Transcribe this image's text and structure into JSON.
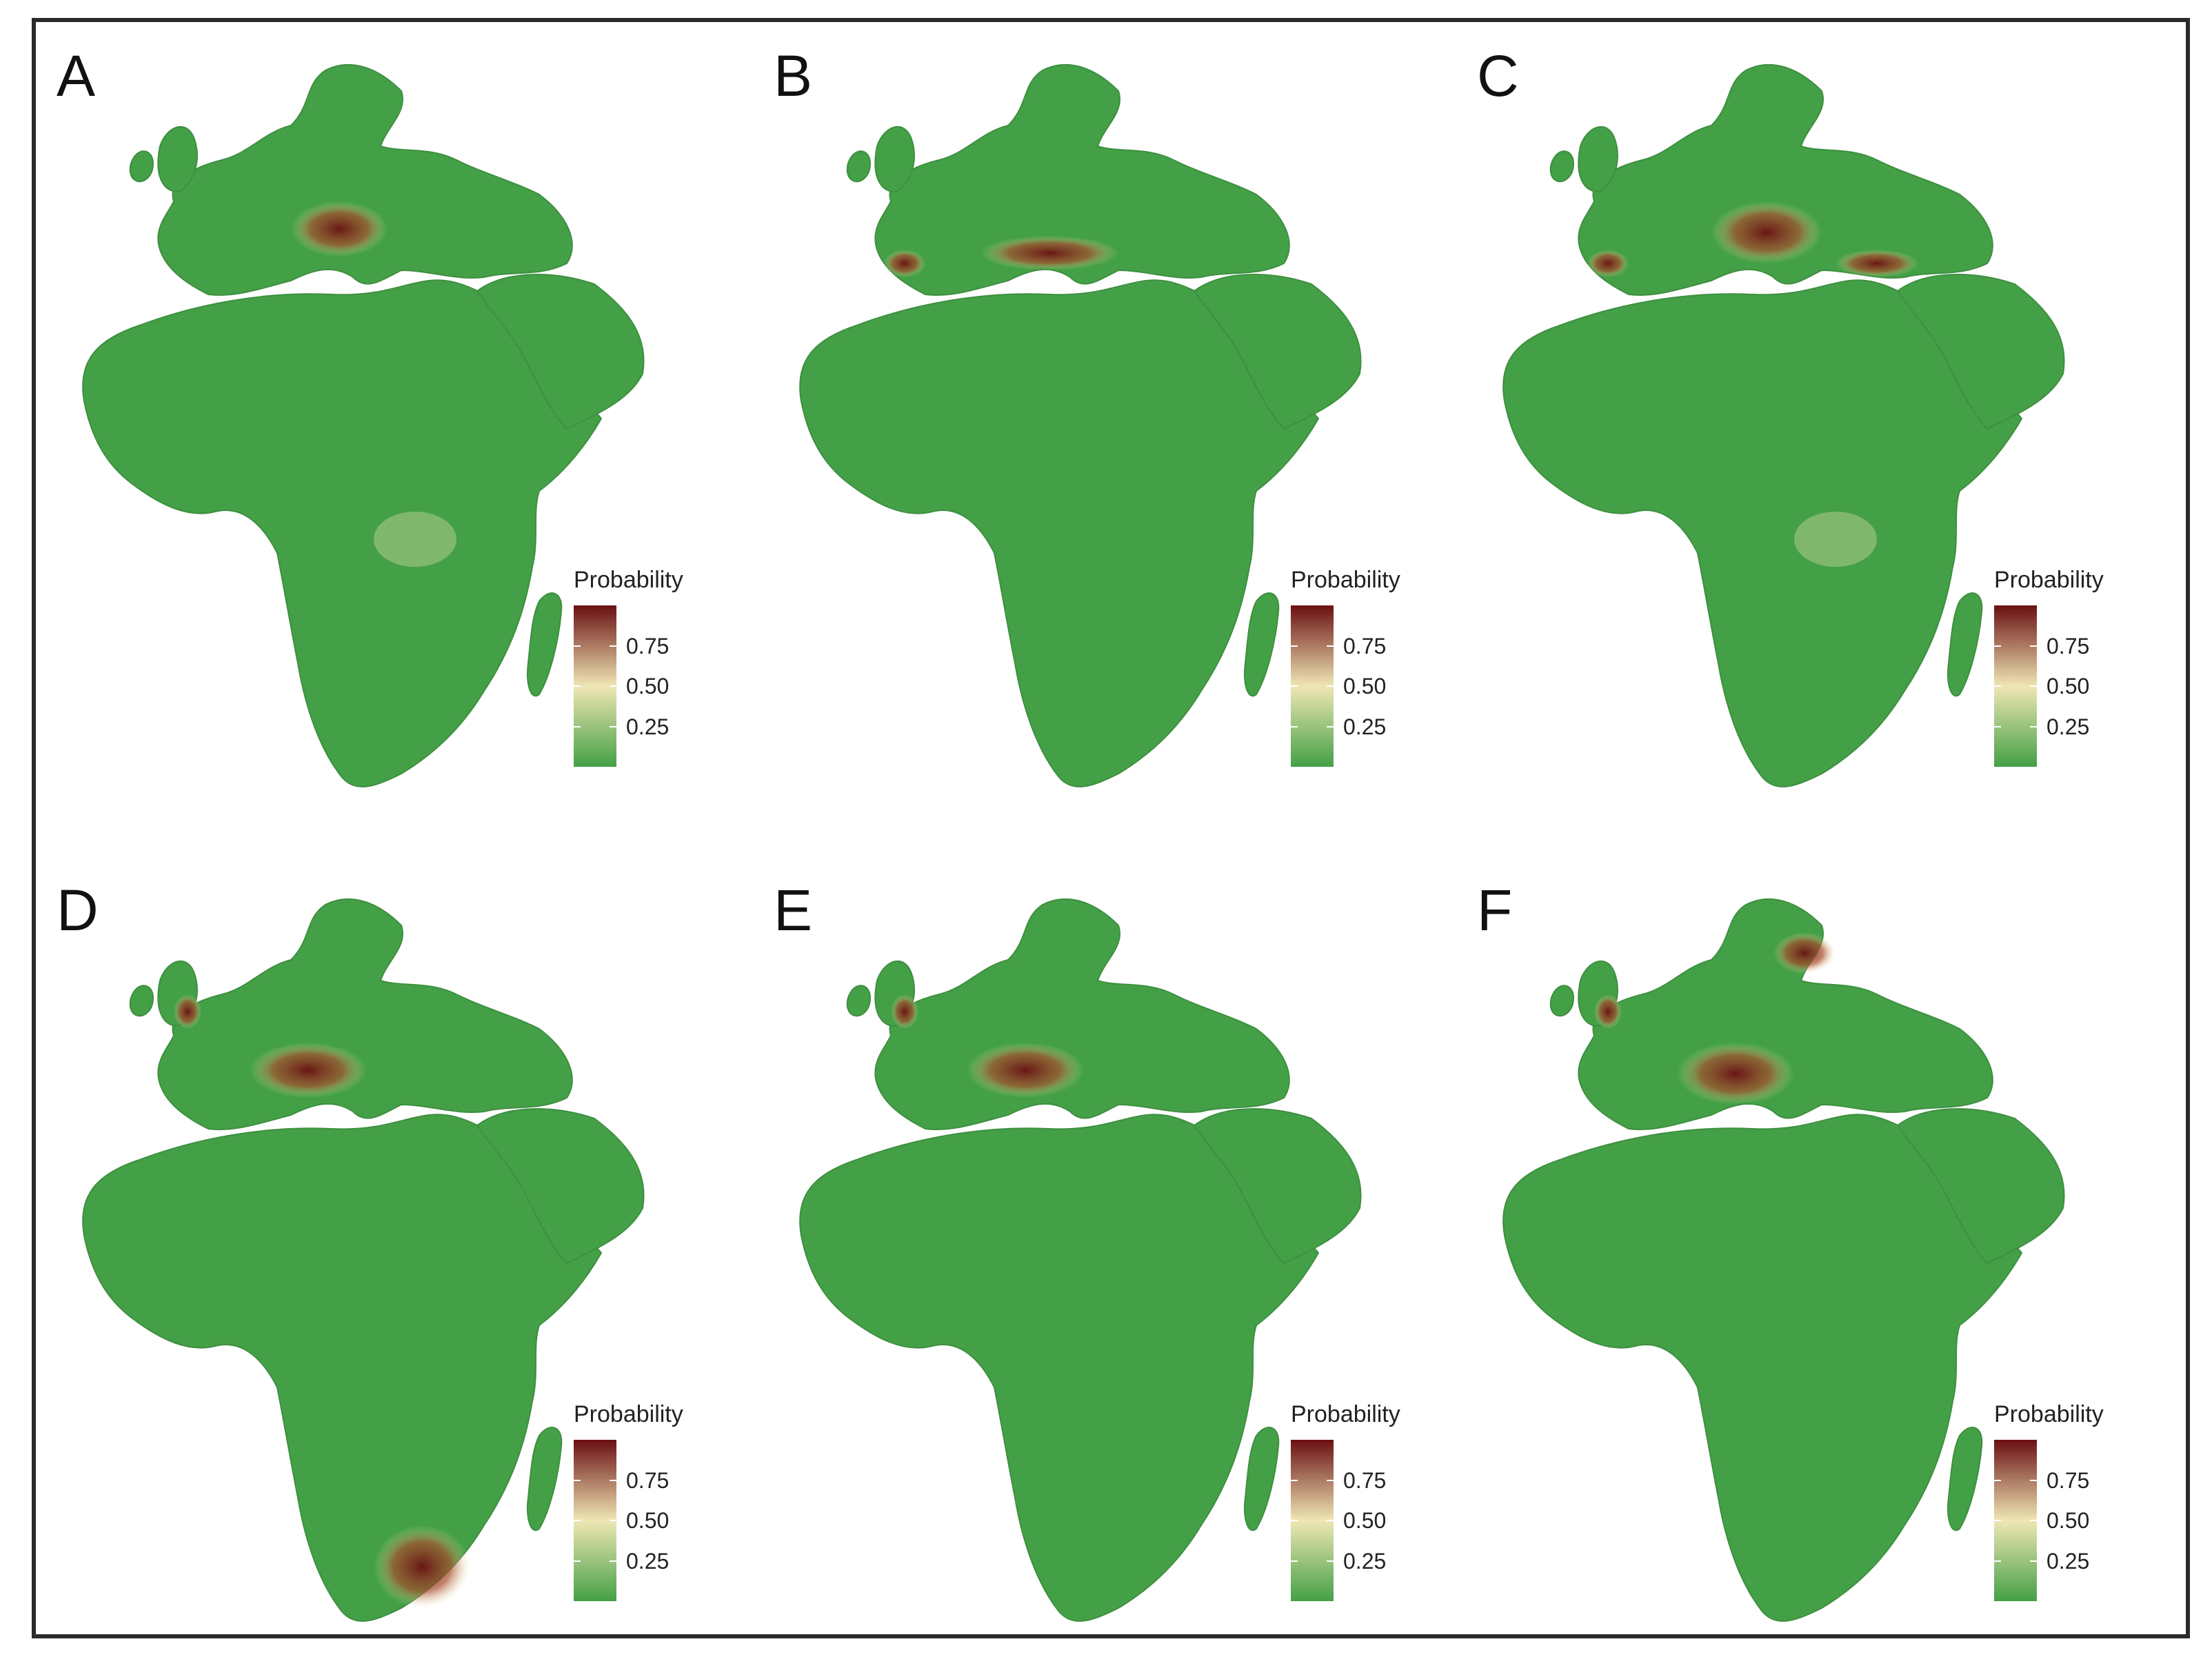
{
  "figure": {
    "panels": [
      {
        "id": "A",
        "label": "A",
        "europe_hotspot": "central",
        "africa_hotspot": "faint"
      },
      {
        "id": "B",
        "label": "B",
        "europe_hotspot": "southern",
        "africa_hotspot": "none"
      },
      {
        "id": "C",
        "label": "C",
        "europe_hotspot": "central-southern",
        "africa_hotspot": "faint"
      },
      {
        "id": "D",
        "label": "D",
        "europe_hotspot": "western",
        "africa_hotspot": "southern"
      },
      {
        "id": "E",
        "label": "E",
        "europe_hotspot": "western",
        "africa_hotspot": "none"
      },
      {
        "id": "F",
        "label": "F",
        "europe_hotspot": "western-northern",
        "africa_hotspot": "none"
      }
    ],
    "legend": {
      "title": "Probability",
      "ticks": [
        "0.75",
        "0.50",
        "0.25"
      ],
      "tick_values": [
        0.75,
        0.5,
        0.25
      ],
      "colors": {
        "low": "#44a046",
        "mid": "#efe6b4",
        "high": "#6a0f12"
      }
    }
  }
}
